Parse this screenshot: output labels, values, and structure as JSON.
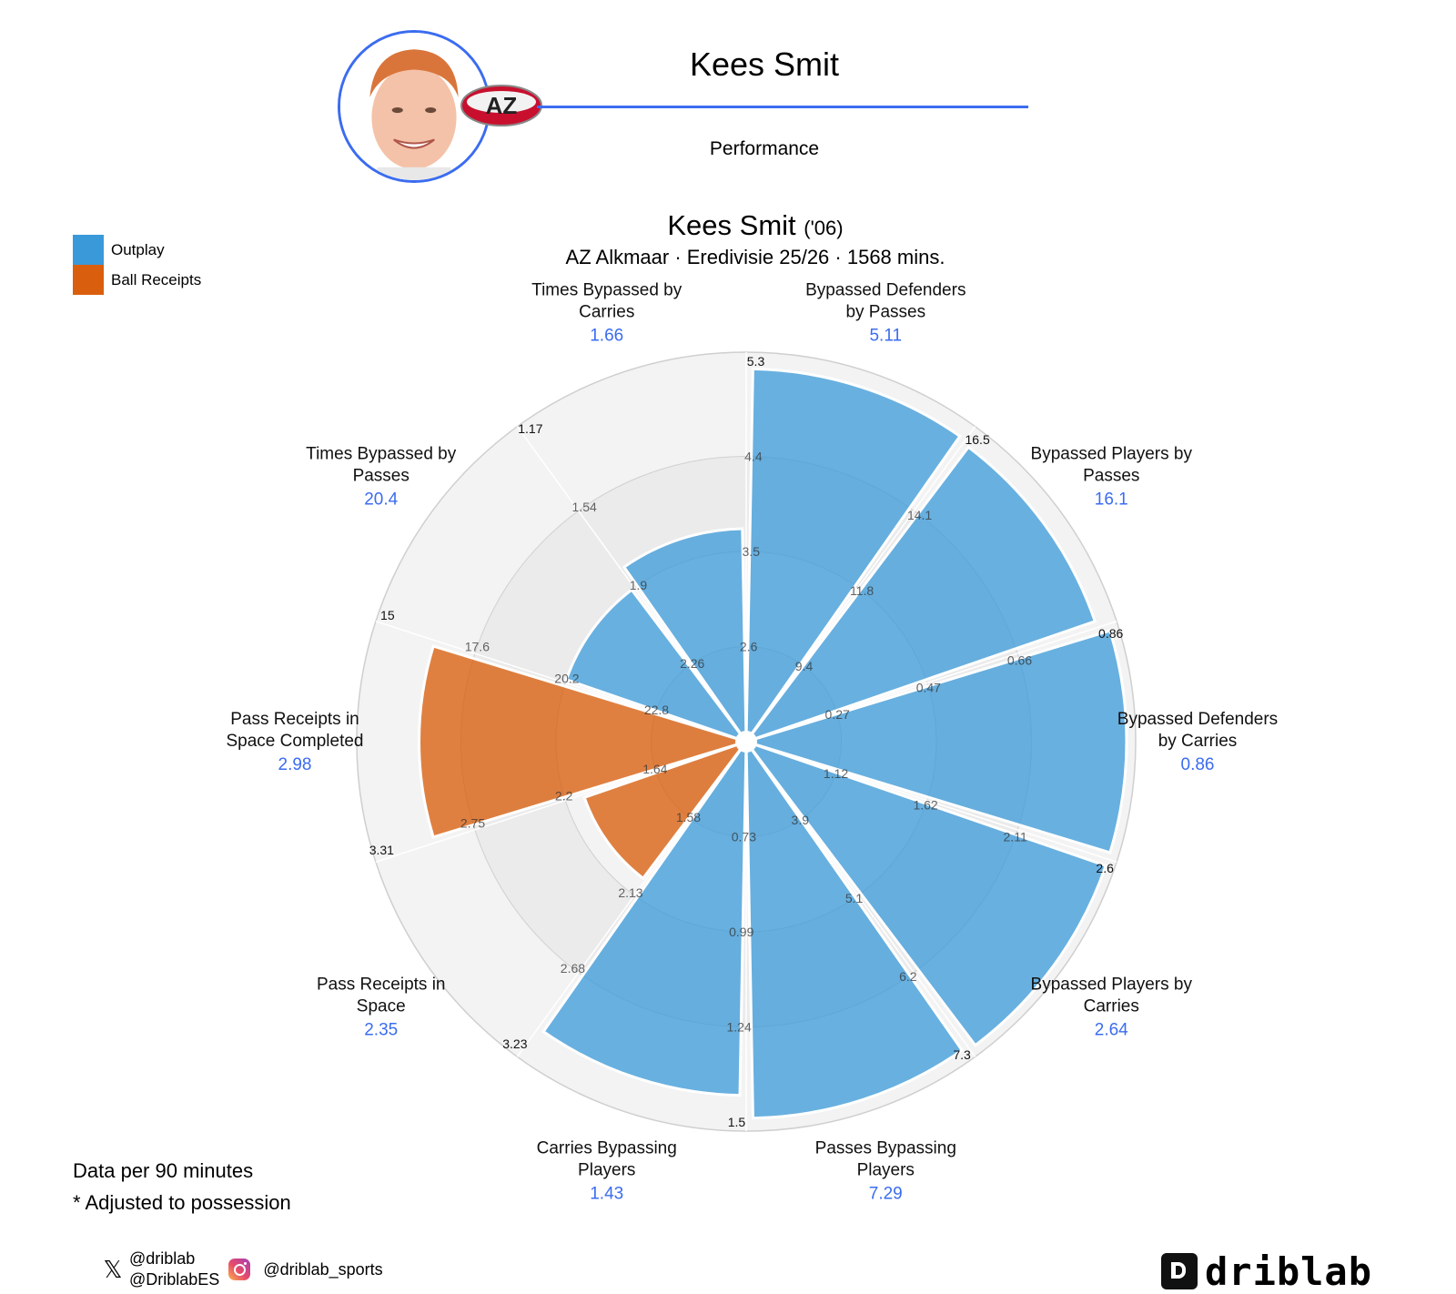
{
  "header": {
    "player_name": "Kees Smit",
    "subtitle": "Performance",
    "club_badge_text": "AZ"
  },
  "legend": [
    {
      "label": "Outplay",
      "color": "#3a9ad9"
    },
    {
      "label": "Ball Receipts",
      "color": "#d95f0e"
    }
  ],
  "chart_data": {
    "type": "polar-bar",
    "title": "Kees Smit",
    "title_suffix": "('06)",
    "subtitle": "AZ Alkmaar · Eredivisie 25/26 · 1568 mins.",
    "categories": [
      {
        "label": "Bypassed Defenders\nby Passes",
        "value": "5.11",
        "percentile": 0.98,
        "group": "Outplay",
        "ticks": [
          "2.6",
          "3.5",
          "4.4",
          "5.3"
        ]
      },
      {
        "label": "Bypassed Players by\nPasses",
        "value": "16.1",
        "percentile": 0.97,
        "group": "Outplay",
        "ticks": [
          "9.4",
          "11.8",
          "14.1",
          "16.5"
        ]
      },
      {
        "label": "Bypassed Defenders\nby Carries",
        "value": "0.86",
        "percentile": 1.0,
        "group": "Outplay",
        "ticks": [
          "0.27",
          "0.47",
          "0.66",
          "0.86"
        ]
      },
      {
        "label": "Bypassed Players by\nCarries",
        "value": "2.64",
        "percentile": 1.0,
        "group": "Outplay",
        "ticks": [
          "1.12",
          "1.62",
          "2.11",
          "2.6"
        ]
      },
      {
        "label": "Passes Bypassing\nPlayers",
        "value": "7.29",
        "percentile": 0.99,
        "group": "Outplay",
        "ticks": [
          "3.9",
          "5.1",
          "6.2",
          "7.3"
        ]
      },
      {
        "label": "Carries Bypassing\nPlayers",
        "value": "1.43",
        "percentile": 0.93,
        "group": "Outplay",
        "ticks": [
          "0.73",
          "0.99",
          "1.24",
          "1.5"
        ]
      },
      {
        "label": "Pass Receipts in\nSpace",
        "value": "2.35",
        "percentile": 0.45,
        "group": "Ball Receipts",
        "ticks": [
          "1.58",
          "2.13",
          "2.68",
          "3.23"
        ]
      },
      {
        "label": "Pass Receipts in\nSpace Completed",
        "value": "2.98",
        "percentile": 0.86,
        "group": "Ball Receipts",
        "ticks": [
          "1.64",
          "2.2",
          "2.75",
          "3.31"
        ]
      },
      {
        "label": "Times Bypassed by\nPasses",
        "value": "20.4",
        "percentile": 0.5,
        "group": "Outplay",
        "ticks": [
          "22.8",
          "20.2",
          "17.6",
          "15"
        ]
      },
      {
        "label": "Times Bypassed by\nCarries",
        "value": "1.66",
        "percentile": 0.56,
        "group": "Outplay",
        "ticks": [
          "2.26",
          "1.9",
          "1.54",
          "1.17"
        ]
      }
    ]
  },
  "footer": {
    "note_1": "Data per 90 minutes",
    "note_2": "* Adjusted to possession",
    "x_handle_1": "@driblab",
    "x_handle_2": "@DriblabES",
    "instagram_handle": "@driblab_sports",
    "brand": "driblab"
  }
}
